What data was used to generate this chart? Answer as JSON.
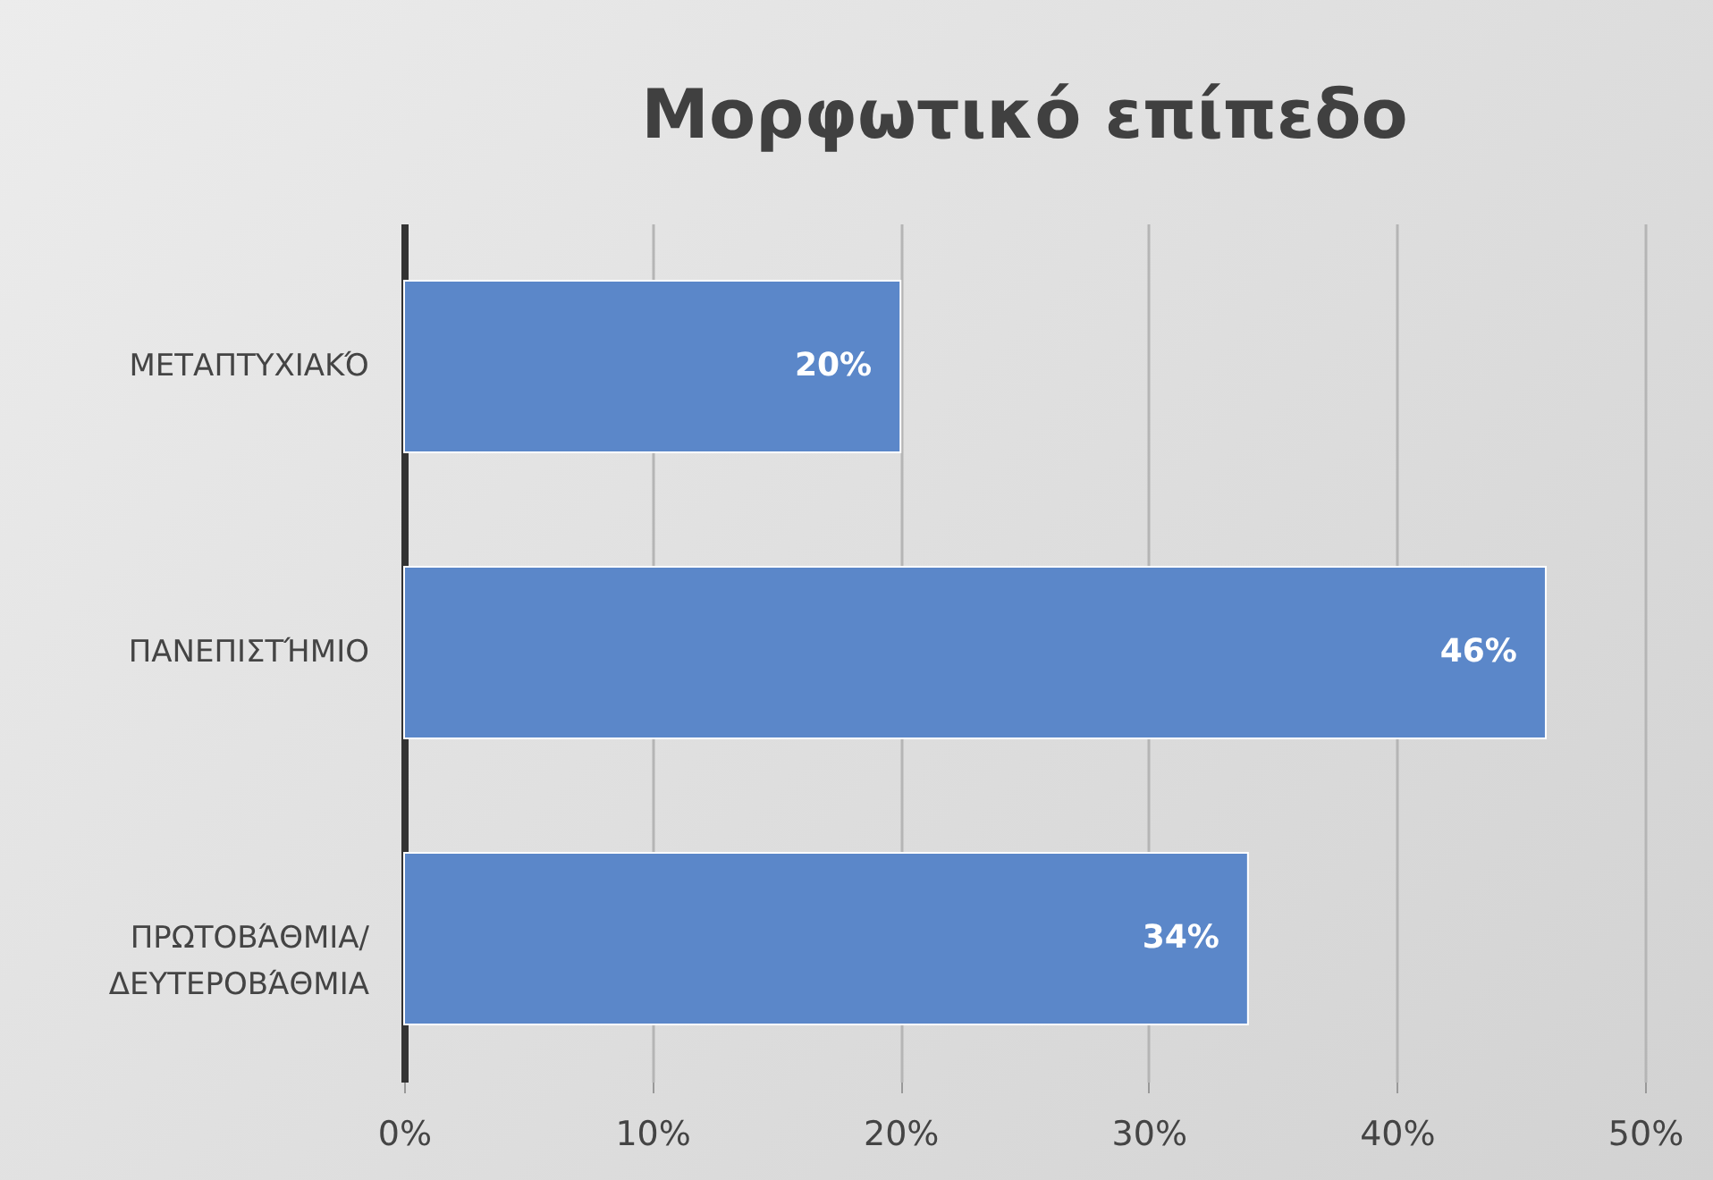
{
  "chart_data": {
    "type": "bar",
    "orientation": "horizontal",
    "title": "Μορφωτικό επίπεδο",
    "categories": [
      "ΜΕΤΑΠΤΥΧΙΑΚΌ",
      "ΠΑΝΕΠΙΣΤΉΜΙΟ",
      "ΠΡΩΤΟΒΆΘΜΙΑ/ ΔΕΥΤΕΡΟΒΆΘΜΙΑ"
    ],
    "values": [
      20,
      46,
      34
    ],
    "color": "#5b87c9",
    "value_labels": [
      "20%",
      "46%",
      "34%"
    ],
    "xlim": [
      0,
      50
    ],
    "xticks": [
      {
        "value": 0,
        "label": "0%"
      },
      {
        "value": 10,
        "label": "10%"
      },
      {
        "value": 20,
        "label": "20%"
      },
      {
        "value": 30,
        "label": "30%"
      },
      {
        "value": 40,
        "label": "40%"
      },
      {
        "value": 50,
        "label": "50%"
      }
    ],
    "grid": "x"
  }
}
